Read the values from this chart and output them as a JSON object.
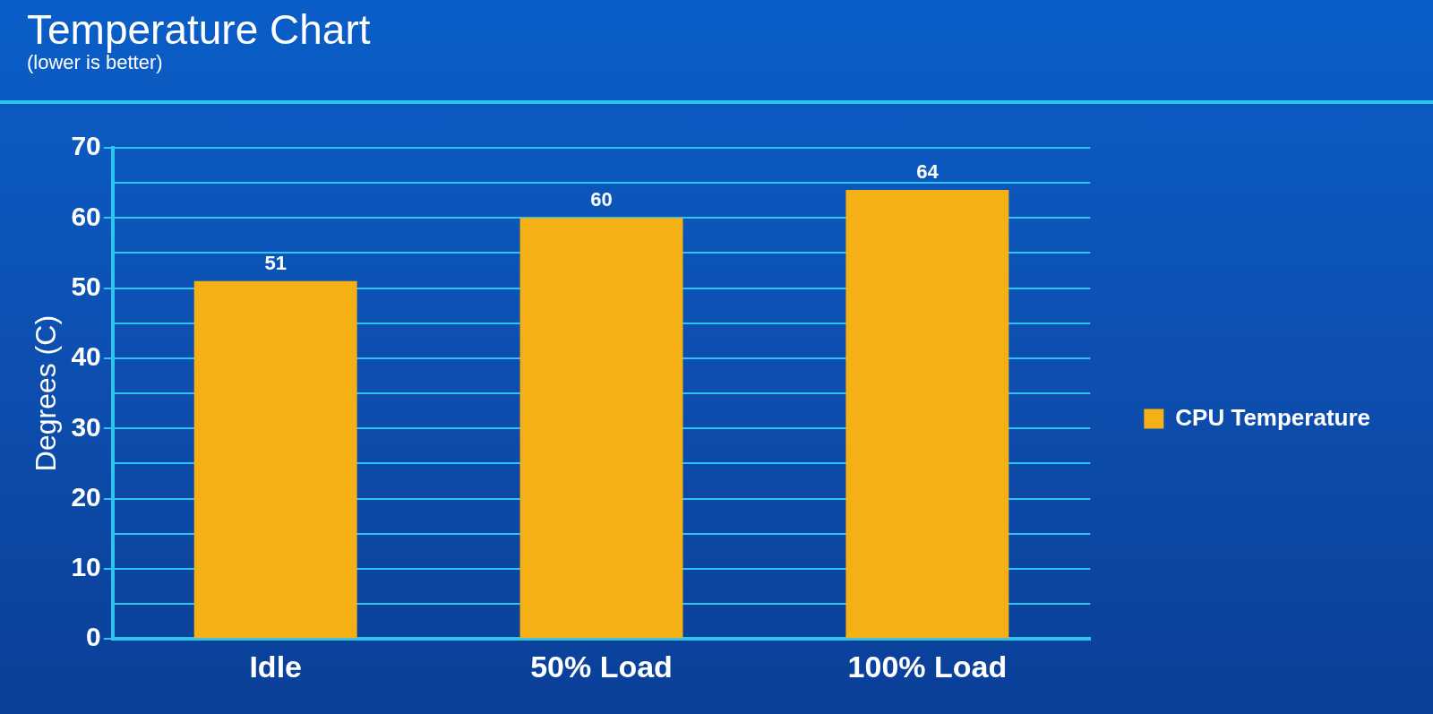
{
  "chart_data": {
    "type": "bar",
    "title": "Temperature Chart",
    "subtitle": "(lower is better)",
    "ylabel": "Degrees (C)",
    "categories": [
      "Idle",
      "50% Load",
      "100% Load"
    ],
    "series": [
      {
        "name": "CPU Temperature",
        "color": "#f5b016",
        "values": [
          51,
          60,
          64
        ]
      }
    ],
    "ylim": [
      0,
      70
    ],
    "yticks": [
      0,
      {
        "value": 5,
        "label": null
      },
      10,
      {
        "value": 15,
        "label": null
      },
      20,
      {
        "value": 25,
        "label": null
      },
      30,
      {
        "value": 35,
        "label": null
      },
      40,
      {
        "value": 45,
        "label": null
      },
      50,
      {
        "value": 55,
        "label": null
      },
      60,
      {
        "value": 65,
        "label": null
      },
      70
    ],
    "grid": "y",
    "legend": "right",
    "data_labels": true
  }
}
